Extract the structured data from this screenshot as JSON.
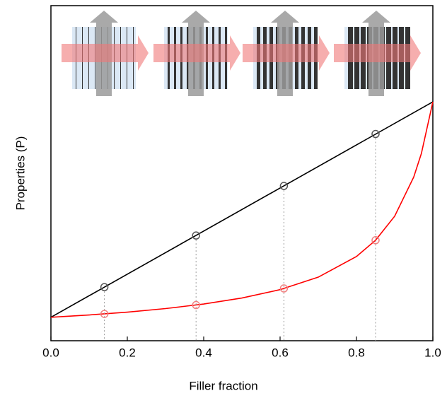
{
  "chart_data": {
    "type": "line",
    "xlabel": "Filler fraction",
    "ylabel": "Properties (P)",
    "xlim": [
      0,
      1
    ],
    "ylim": [
      0,
      1
    ],
    "xticks": [
      {
        "value": 0,
        "label": "0.0"
      },
      0.2,
      0.4,
      0.6,
      0.8,
      {
        "value": 1,
        "label": "1.0"
      }
    ],
    "series": [
      {
        "color": "#000000",
        "style": "line",
        "x": [
          0,
          1
        ],
        "values": [
          0.07,
          0.713
        ]
      },
      {
        "color": "#ff0000",
        "style": "line",
        "x": [
          0,
          0.1,
          0.2,
          0.3,
          0.4,
          0.5,
          0.6,
          0.7,
          0.8,
          0.85,
          0.9,
          0.95,
          0.97,
          1
        ],
        "values": [
          0.07,
          0.0769,
          0.0854,
          0.096,
          0.1095,
          0.1275,
          0.1525,
          0.1898,
          0.2513,
          0.3,
          0.3716,
          0.4887,
          0.559,
          0.713
        ]
      },
      {
        "color": "#555555",
        "style": "markers",
        "drop_lines": true,
        "x": [
          0.14,
          0.38,
          0.61,
          0.85
        ],
        "values": [
          0.16,
          0.314,
          0.462,
          0.617
        ]
      },
      {
        "color": "#f08080",
        "style": "markers",
        "drop_lines": false,
        "x": [
          0.14,
          0.38,
          0.61,
          0.85
        ],
        "values": [
          0.08,
          0.1065,
          0.156,
          0.3
        ]
      }
    ]
  }
}
